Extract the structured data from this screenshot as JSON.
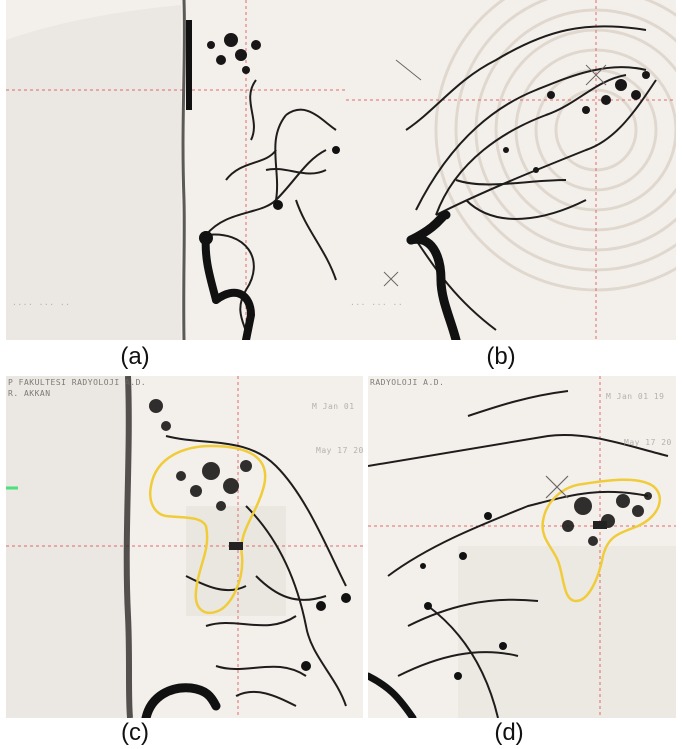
{
  "captions": {
    "a": "(a)",
    "b": "(b)",
    "c": "(c)",
    "d": "(d)"
  },
  "overlays": {
    "c_top_left_1": "P FAKULTESI RADYOLOJI A.D.",
    "c_top_left_2": "R. AKKAN",
    "d_top_left": "RADYOLOJI A.D.",
    "c_top_right_date": "M Jan 01",
    "c_right_date": "May 17 20",
    "d_top_right_date": "M Jan 01 19",
    "d_right_date": "May 17 20"
  },
  "colors": {
    "background": "#f1eeea",
    "vessel": "#1a1818",
    "vessel_faint": "#6f6b68",
    "crosshair": "#e06a6a",
    "outline": "#f0cc3a"
  }
}
